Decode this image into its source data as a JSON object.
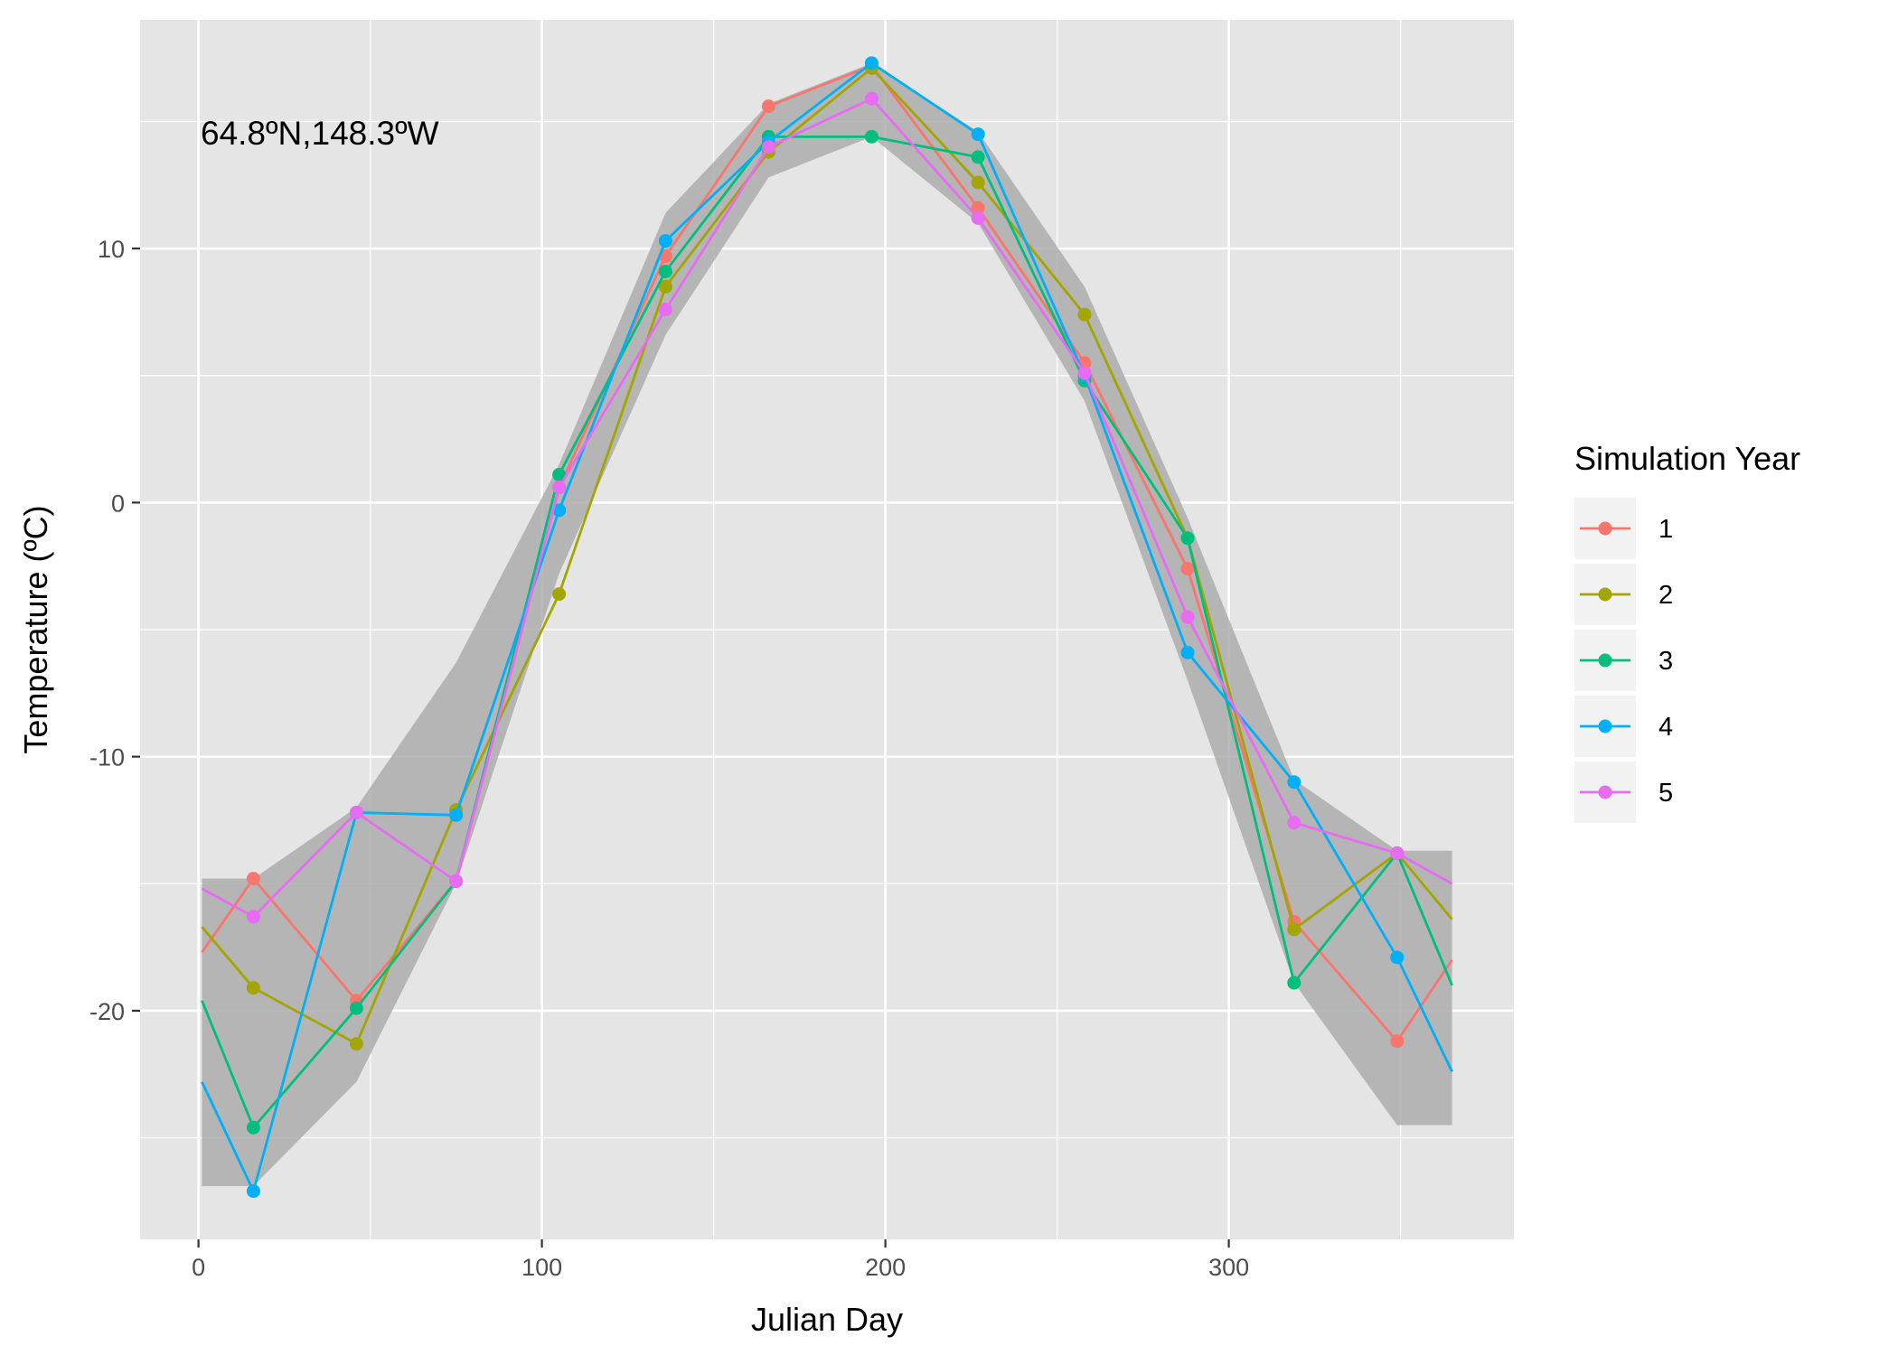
{
  "chart_data": {
    "type": "line",
    "title": "",
    "annotation": "64.8ºN,148.3ºW",
    "xlabel": "Julian Day",
    "ylabel": "Temperature (ºC)",
    "xlim": [
      -17,
      383
    ],
    "ylim": [
      -29,
      19
    ],
    "x_ticks": [
      0,
      100,
      200,
      300
    ],
    "x_tick_labels": [
      "0",
      "100",
      "200",
      "300"
    ],
    "y_ticks": [
      -20,
      -10,
      0,
      10
    ],
    "y_tick_labels": [
      "-20",
      "-10",
      "0",
      "10"
    ],
    "grid": true,
    "legend": {
      "title": "Simulation Year",
      "position": "right"
    },
    "x": [
      1,
      16,
      46,
      75,
      105,
      136,
      166,
      196,
      227,
      258,
      288,
      319,
      349,
      365
    ],
    "series": [
      {
        "name": "1",
        "color": "#F8766D",
        "values": [
          -17.7,
          -14.8,
          -19.6,
          -14.9,
          0.6,
          9.7,
          15.6,
          17.2,
          11.6,
          5.5,
          -2.6,
          -16.5,
          -21.2,
          -18.0
        ]
      },
      {
        "name": "2",
        "color": "#A3A500",
        "values": [
          -16.7,
          -19.1,
          -21.3,
          -12.1,
          -3.6,
          8.5,
          13.8,
          17.1,
          12.6,
          7.4,
          -1.4,
          -16.8,
          -13.8,
          -16.4
        ]
      },
      {
        "name": "3",
        "color": "#00BF7D",
        "values": [
          -19.6,
          -24.6,
          -19.9,
          -14.9,
          1.1,
          9.1,
          14.4,
          14.4,
          13.6,
          4.8,
          -1.4,
          -18.9,
          -13.8,
          -19.0
        ]
      },
      {
        "name": "4",
        "color": "#00B0F6",
        "values": [
          -22.8,
          -27.1,
          -12.2,
          -12.3,
          -0.3,
          10.3,
          14.2,
          17.3,
          14.5,
          5.0,
          -5.9,
          -11.0,
          -17.9,
          -22.4
        ]
      },
      {
        "name": "5",
        "color": "#E76BF3",
        "values": [
          -15.2,
          -16.3,
          -12.2,
          -14.9,
          0.6,
          7.6,
          14.0,
          15.9,
          11.2,
          5.1,
          -4.5,
          -12.6,
          -13.8,
          -15.0
        ]
      }
    ],
    "ribbon": {
      "color": "#adadad",
      "x": [
        1,
        16,
        46,
        75,
        105,
        136,
        166,
        196,
        227,
        258,
        288,
        319,
        349,
        365
      ],
      "lower": [
        -26.9,
        -26.9,
        -22.8,
        -15.0,
        -2.8,
        6.6,
        12.8,
        14.4,
        11.0,
        4.0,
        -7.0,
        -18.9,
        -24.5,
        -24.5
      ],
      "upper": [
        -14.8,
        -14.8,
        -12.0,
        -6.3,
        1.5,
        11.4,
        15.7,
        17.3,
        14.6,
        8.5,
        -0.6,
        -10.9,
        -13.7,
        -13.7
      ]
    },
    "panel_background": "#e5e5e5",
    "grid_color": "#ffffff"
  }
}
